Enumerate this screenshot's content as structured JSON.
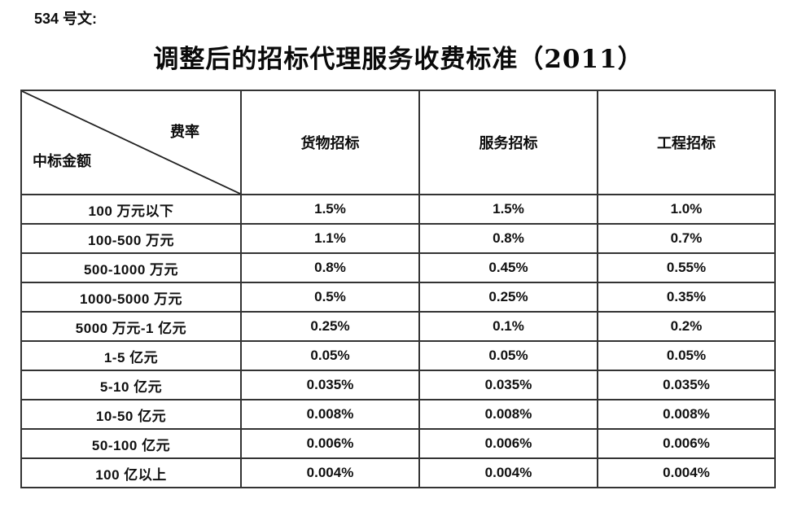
{
  "document": {
    "label": "534 号文:",
    "title": "调整后的招标代理服务收费标准（2011）"
  },
  "table": {
    "corner": {
      "top_right": "费率",
      "bottom_left": "中标金额"
    },
    "columns": [
      "货物招标",
      "服务招标",
      "工程招标"
    ],
    "rows": [
      {
        "label": "100 万元以下",
        "values": [
          "1.5%",
          "1.5%",
          "1.0%"
        ]
      },
      {
        "label": "100-500 万元",
        "values": [
          "1.1%",
          "0.8%",
          "0.7%"
        ]
      },
      {
        "label": "500-1000 万元",
        "values": [
          "0.8%",
          "0.45%",
          "0.55%"
        ]
      },
      {
        "label": "1000-5000 万元",
        "values": [
          "0.5%",
          "0.25%",
          "0.35%"
        ]
      },
      {
        "label": "5000 万元-1 亿元",
        "values": [
          "0.25%",
          "0.1%",
          "0.2%"
        ]
      },
      {
        "label": "1-5 亿元",
        "values": [
          "0.05%",
          "0.05%",
          "0.05%"
        ]
      },
      {
        "label": "5-10 亿元",
        "values": [
          "0.035%",
          "0.035%",
          "0.035%"
        ]
      },
      {
        "label": "10-50 亿元",
        "values": [
          "0.008%",
          "0.008%",
          "0.008%"
        ]
      },
      {
        "label": "50-100 亿元",
        "values": [
          "0.006%",
          "0.006%",
          "0.006%"
        ]
      },
      {
        "label": "100 亿以上",
        "values": [
          "0.004%",
          "0.004%",
          "0.004%"
        ]
      }
    ]
  },
  "colors": {
    "text": "#111111",
    "border": "#333333",
    "background": "#ffffff"
  }
}
